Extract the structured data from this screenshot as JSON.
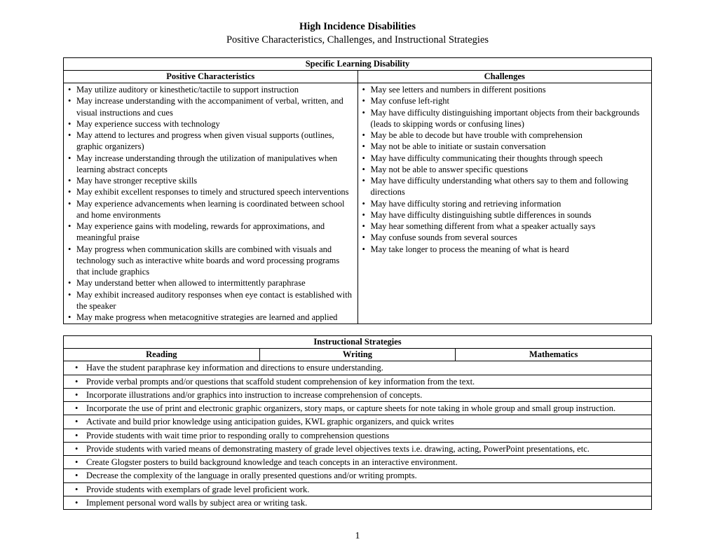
{
  "title": "High Incidence Disabilities",
  "subtitle": "Positive Characteristics, Challenges, and Instructional Strategies",
  "table1": {
    "section_header": "Specific Learning Disability",
    "col1_header": "Positive Characteristics",
    "col2_header": "Challenges",
    "positive": [
      "May utilize auditory or kinesthetic/tactile to support instruction",
      "May increase understanding with the accompaniment of verbal, written, and visual instructions and cues",
      "May experience success with technology",
      "May attend to lectures and progress when given visual supports  (outlines, graphic organizers)",
      "May increase understanding through the utilization of manipulatives when learning abstract concepts",
      "May have stronger receptive skills",
      "May exhibit excellent responses to timely and structured speech interventions",
      "May experience advancements when learning is coordinated between school and home  environments",
      "May experience gains with modeling, rewards for approximations, and meaningful praise",
      "May progress when communication skills are combined with visuals and technology such as interactive white boards and word processing programs that include graphics",
      "May understand better when allowed to intermittently paraphrase",
      "May exhibit increased auditory responses when eye contact is established with the speaker",
      "May make progress when metacognitive strategies are learned and applied"
    ],
    "challenges": [
      "May see letters and numbers in different positions",
      "May confuse left-right",
      "May have difficulty distinguishing important objects from their backgrounds (leads to skipping words or confusing lines)",
      "May be able to decode but have trouble with comprehension",
      "May not be able to initiate or sustain conversation",
      "May have difficulty communicating their thoughts through speech",
      "May not be able to answer specific questions",
      "May have difficulty understanding what others say to them and following directions",
      "May have difficulty storing and retrieving information",
      "May have difficulty distinguishing subtle differences in sounds",
      "May hear something different from what a speaker actually says",
      "May confuse sounds from several sources",
      "May take longer to process the meaning of what is heard"
    ]
  },
  "table2": {
    "section_header": "Instructional Strategies",
    "col1_header": "Reading",
    "col2_header": "Writing",
    "col3_header": "Mathematics",
    "strategies": [
      "Have the student paraphrase key information and directions to ensure understanding.",
      "Provide verbal prompts and/or questions that scaffold student comprehension of key information from the text.",
      "Incorporate illustrations and/or graphics into instruction to increase comprehension of concepts.",
      "Incorporate the use of print and electronic graphic organizers, story maps, or capture sheets for note taking in whole group and small group instruction.",
      "Activate and build prior knowledge using anticipation guides, KWL graphic organizers, and quick writes",
      "Provide students with wait time prior to responding orally to comprehension questions",
      "Provide students with varied means of demonstrating mastery of grade level objectives texts i.e. drawing, acting, PowerPoint presentations, etc.",
      "Create Glogster posters to build background knowledge and teach concepts in an interactive environment.",
      "Decrease the complexity of the language in orally presented questions and/or writing prompts.",
      "Provide students with exemplars of grade level proficient work.",
      "Implement personal word walls by subject area or writing task."
    ]
  },
  "page_number": "1"
}
